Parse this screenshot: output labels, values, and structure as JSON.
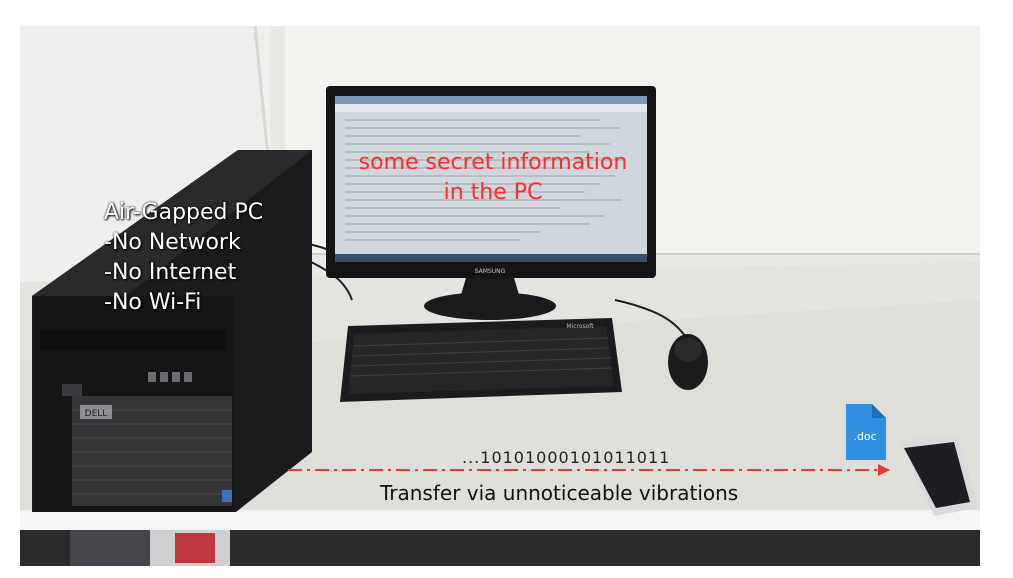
{
  "pc_label": {
    "title": "Air-Gapped PC",
    "lines": [
      "-No Network",
      "-No Internet",
      "-No Wi-Fi"
    ]
  },
  "screen_overlay": {
    "line1": "some secret information",
    "line2": "in the PC"
  },
  "transfer": {
    "bits": "...10101000101011011",
    "caption": "Transfer via unnoticeable vibrations",
    "arrow_color": "#e8382f"
  },
  "doc_icon": {
    "label": ".doc",
    "color": "#2f8fe0"
  },
  "brands": {
    "pc": "DELL",
    "monitor": "SAMSUNG",
    "keyboard": "Microsoft"
  }
}
